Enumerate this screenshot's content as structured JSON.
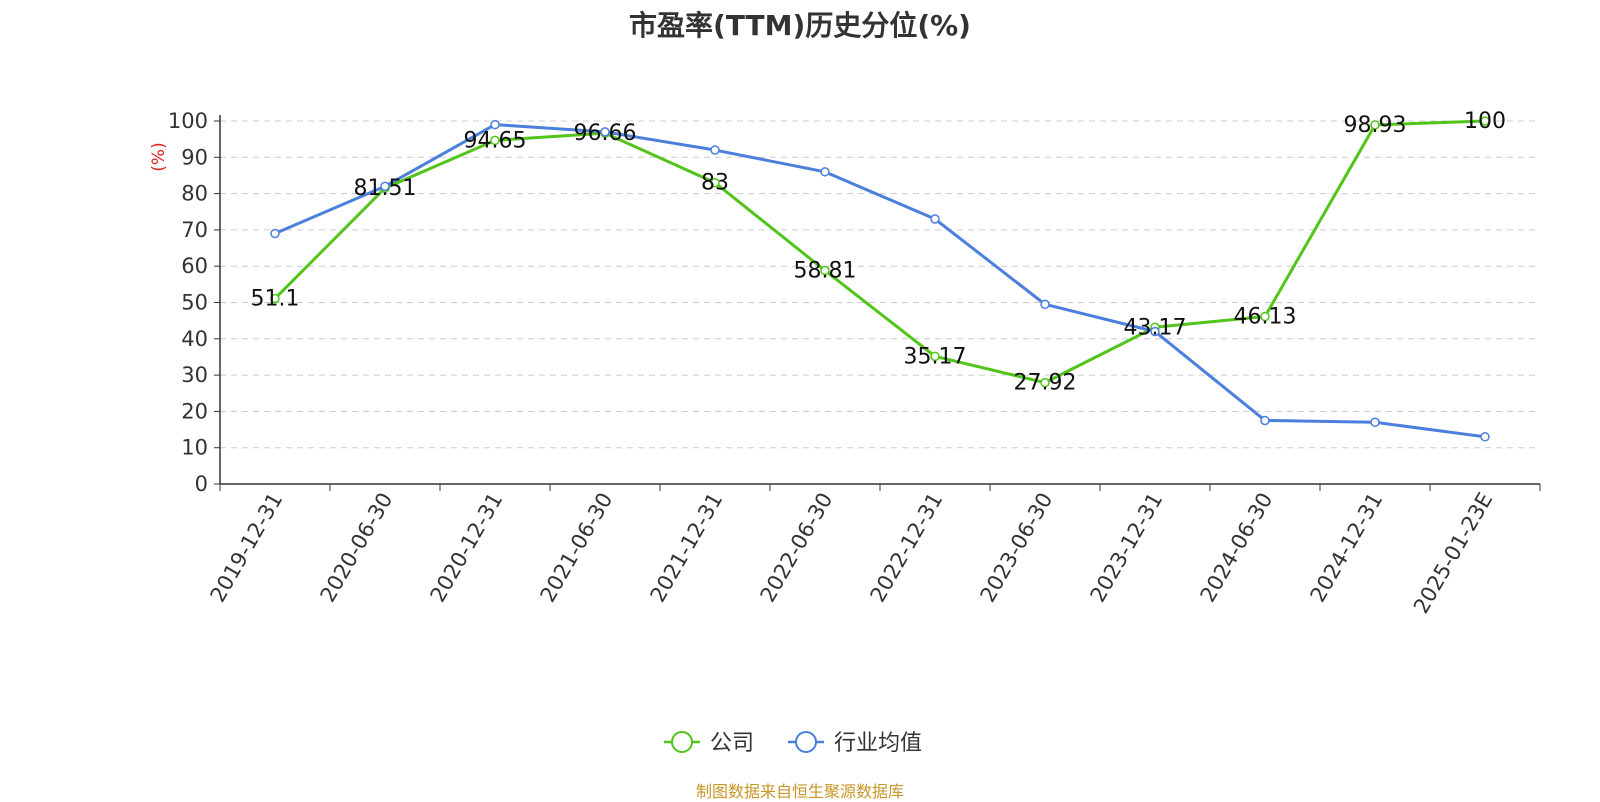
{
  "chart_data": {
    "type": "line",
    "title": "市盈率(TTM)历史分位(%)",
    "ylabel": "(%)",
    "xlabel": "",
    "ylim": [
      0,
      100
    ],
    "yticks": [
      0,
      10,
      20,
      30,
      40,
      50,
      60,
      70,
      80,
      90,
      100
    ],
    "grid": true,
    "legend_position": "bottom",
    "categories": [
      "2019-12-31",
      "2020-06-30",
      "2020-12-31",
      "2021-06-30",
      "2021-12-31",
      "2022-06-30",
      "2022-12-31",
      "2023-06-30",
      "2023-12-31",
      "2024-06-30",
      "2024-12-31",
      "2025-01-23E"
    ],
    "series": [
      {
        "name": "公司",
        "color": "#52c41a",
        "values": [
          51.1,
          81.51,
          94.65,
          96.66,
          83,
          58.81,
          35.17,
          27.92,
          43.17,
          46.13,
          98.93,
          100
        ],
        "labels": [
          "51.1",
          "81.51",
          "94.65",
          "96.66",
          "83",
          "58.81",
          "35.17",
          "27.92",
          "43.17",
          "46.13",
          "98.93",
          "100"
        ]
      },
      {
        "name": "行业均值",
        "color": "#4a7fdc",
        "values": [
          69,
          82,
          99,
          97,
          92,
          86,
          73,
          49.5,
          42,
          17.5,
          17,
          13
        ]
      }
    ]
  },
  "source": "制图数据来自恒生聚源数据库"
}
